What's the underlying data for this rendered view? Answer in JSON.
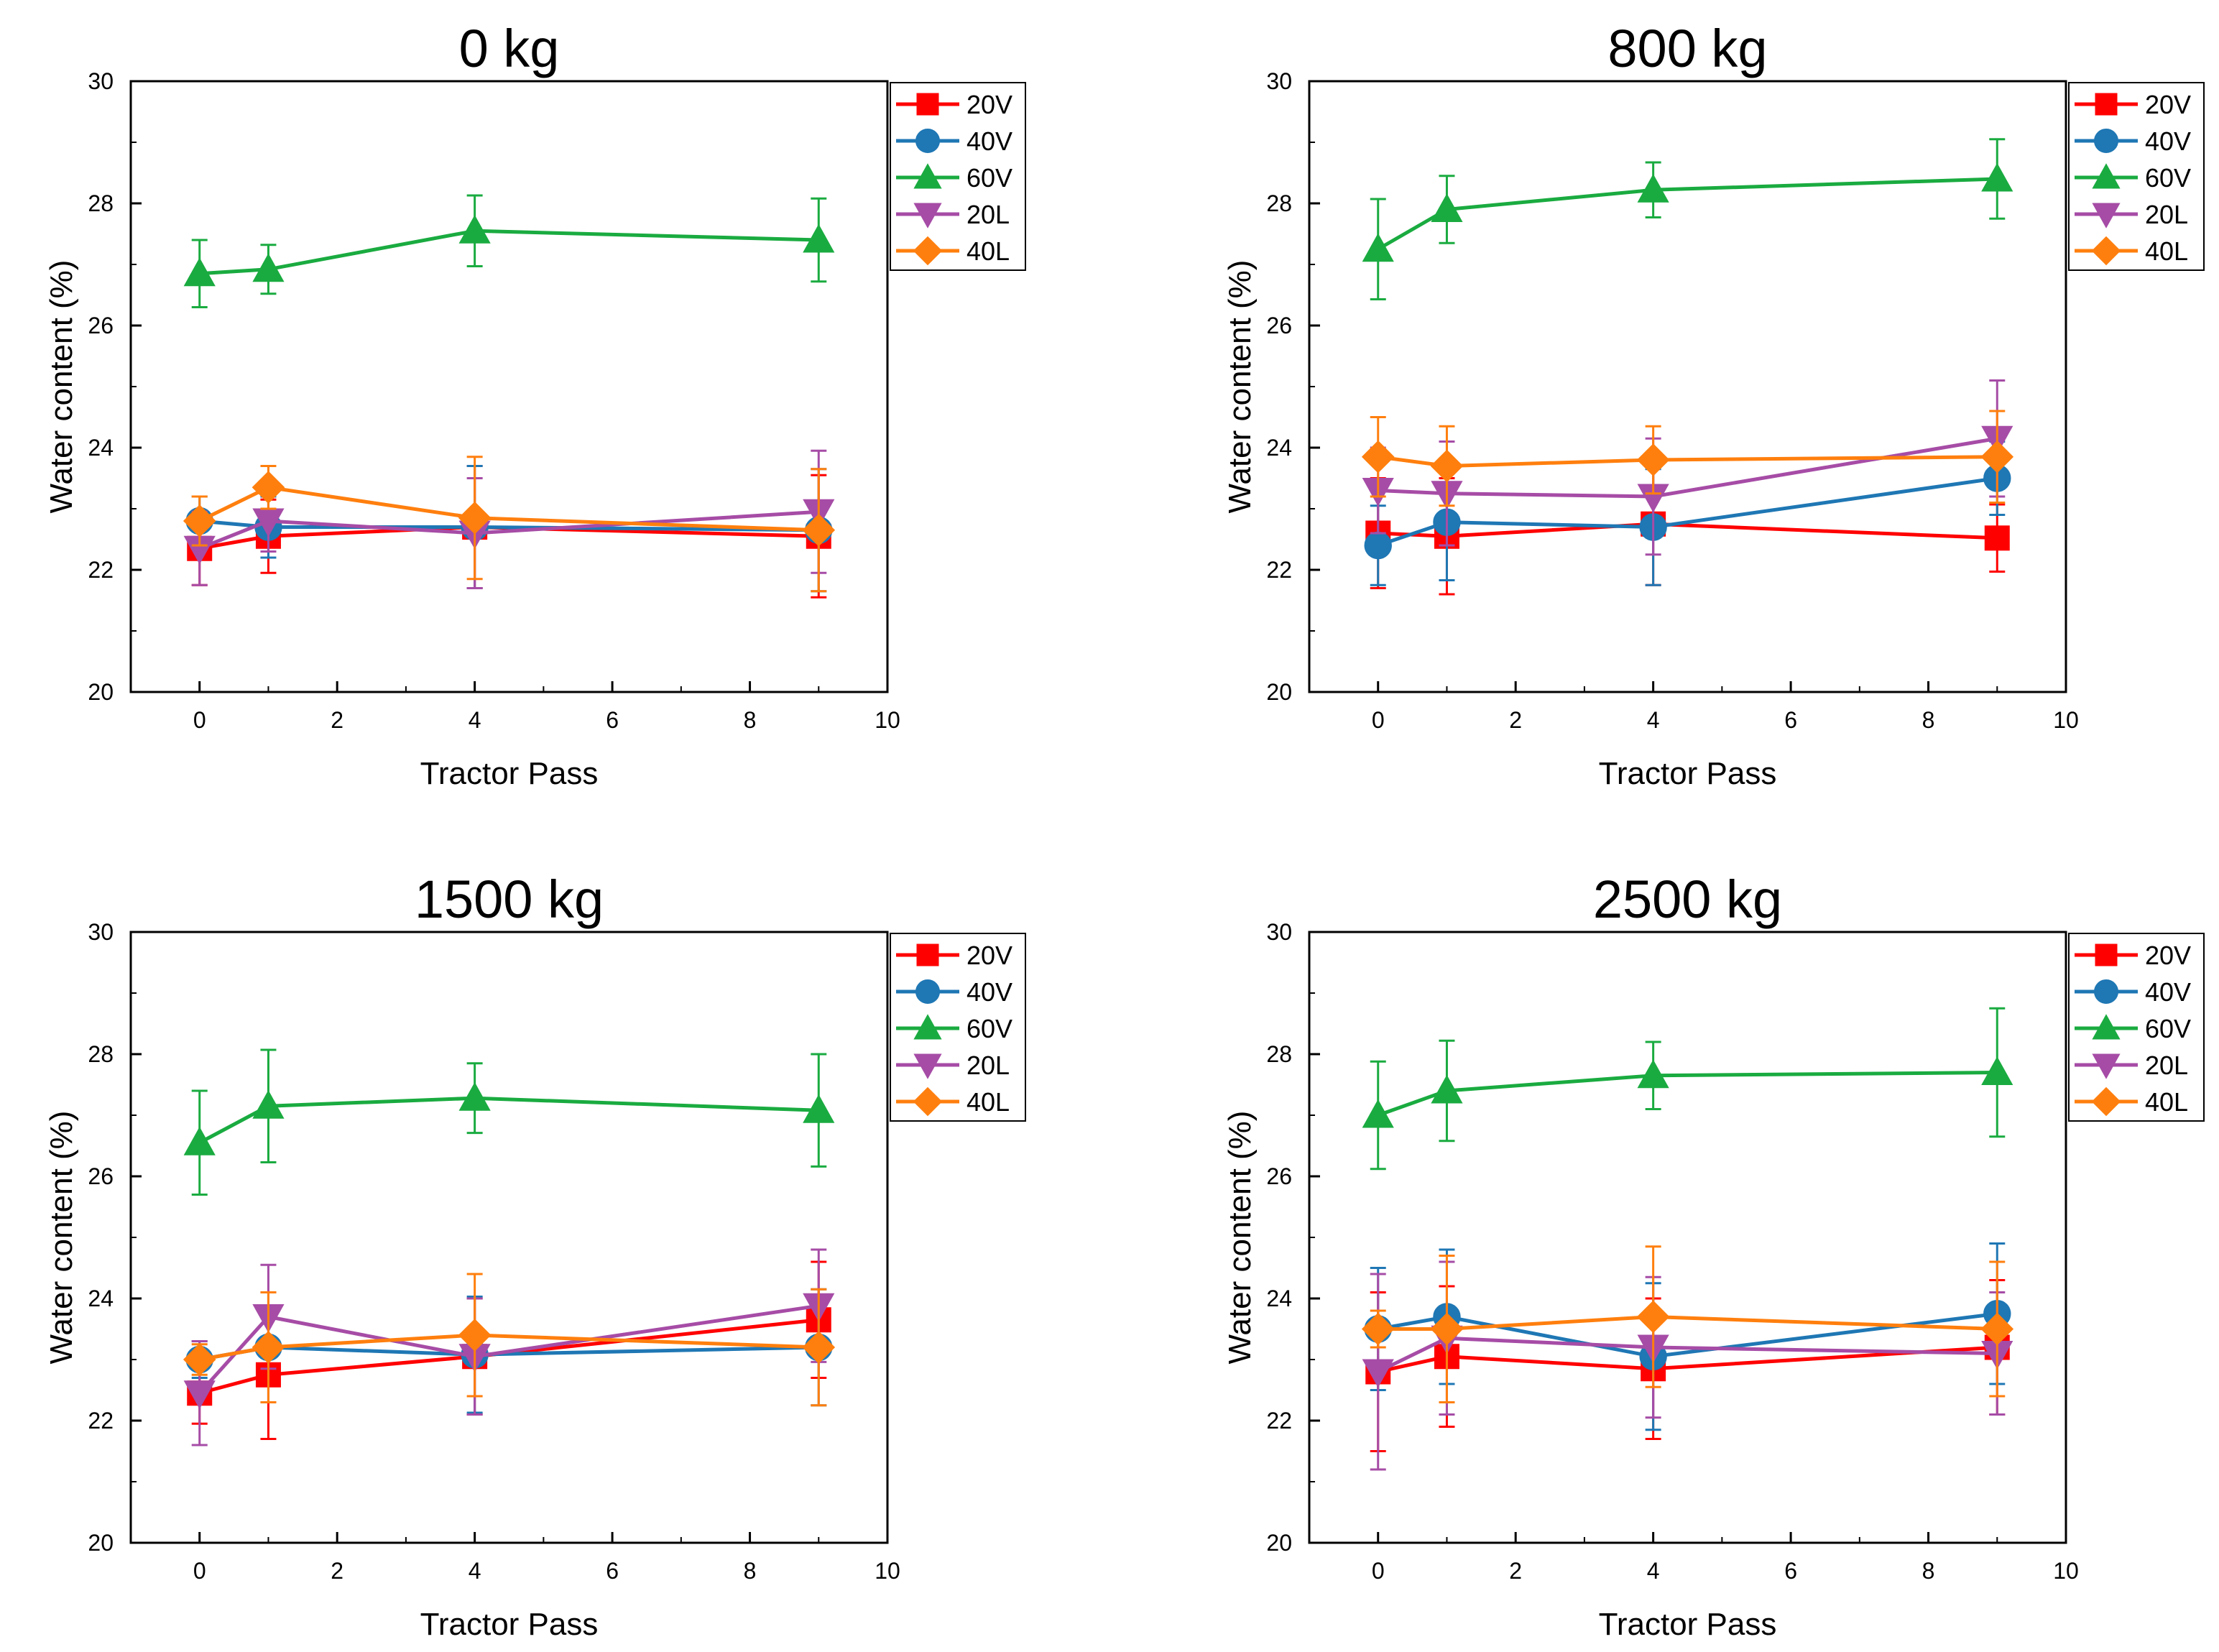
{
  "series_style": {
    "20V": {
      "color": "#ff0000",
      "marker": "square"
    },
    "40V": {
      "color": "#1f77b4",
      "marker": "circle"
    },
    "60V": {
      "color": "#1aab40",
      "marker": "triangle-up"
    },
    "20L": {
      "color": "#a64ca6",
      "marker": "triangle-down"
    },
    "40L": {
      "color": "#ff7f0e",
      "marker": "diamond"
    }
  },
  "chart_data": [
    {
      "type": "line",
      "title": "0 kg",
      "xlabel": "Tractor Pass",
      "ylabel": "Water content (%)",
      "xlim": [
        -1,
        10
      ],
      "ylim": [
        20,
        30
      ],
      "xticks": [
        "0",
        "2",
        "4",
        "6",
        "8",
        "10"
      ],
      "yticks": [
        "20",
        "22",
        "24",
        "26",
        "28",
        "30"
      ],
      "legend": "top-right, outside",
      "x": [
        0,
        1,
        4,
        9
      ],
      "series": [
        {
          "name": "20V",
          "values": [
            22.35,
            22.55,
            22.7,
            22.55
          ],
          "errors": [
            0.6,
            0.6,
            1.0,
            1.0
          ]
        },
        {
          "name": "40V",
          "values": [
            22.8,
            22.7,
            22.7,
            22.65
          ],
          "errors": [
            0.4,
            0.5,
            1.0,
            1.0
          ]
        },
        {
          "name": "60V",
          "values": [
            26.85,
            26.92,
            27.55,
            27.4
          ],
          "errors": [
            0.55,
            0.4,
            0.58,
            0.68
          ]
        },
        {
          "name": "20L",
          "values": [
            22.35,
            22.8,
            22.6,
            22.95
          ],
          "errors": [
            0.6,
            0.5,
            0.9,
            1.0
          ]
        },
        {
          "name": "40L",
          "values": [
            22.8,
            23.35,
            22.85,
            22.65
          ],
          "errors": [
            0.4,
            0.35,
            1.0,
            1.0
          ]
        }
      ]
    },
    {
      "type": "line",
      "title": "800 kg",
      "xlabel": "Tractor Pass",
      "ylabel": "Water content (%)",
      "xlim": [
        -1,
        10
      ],
      "ylim": [
        20,
        30
      ],
      "xticks": [
        "0",
        "2",
        "4",
        "6",
        "8",
        "10"
      ],
      "yticks": [
        "20",
        "22",
        "24",
        "26",
        "28",
        "30"
      ],
      "legend": "top-right, outside",
      "x": [
        0,
        1,
        4,
        9
      ],
      "series": [
        {
          "name": "20V",
          "values": [
            22.6,
            22.55,
            22.75,
            22.52
          ],
          "errors": [
            0.9,
            0.95,
            1.0,
            0.55
          ]
        },
        {
          "name": "40V",
          "values": [
            22.4,
            22.78,
            22.7,
            23.5
          ],
          "errors": [
            0.65,
            0.95,
            0.95,
            0.6
          ]
        },
        {
          "name": "60V",
          "values": [
            27.25,
            27.9,
            28.22,
            28.4
          ],
          "errors": [
            0.82,
            0.55,
            0.45,
            0.65
          ]
        },
        {
          "name": "20L",
          "values": [
            23.3,
            23.25,
            23.2,
            24.15
          ],
          "errors": [
            0.7,
            0.85,
            0.95,
            0.95
          ]
        },
        {
          "name": "40L",
          "values": [
            23.85,
            23.7,
            23.8,
            23.85
          ],
          "errors": [
            0.65,
            0.65,
            0.55,
            0.75
          ]
        }
      ]
    },
    {
      "type": "line",
      "title": "1500 kg",
      "xlabel": "Tractor Pass",
      "ylabel": "Water content (%)",
      "xlim": [
        -1,
        10
      ],
      "ylim": [
        20,
        30
      ],
      "xticks": [
        "0",
        "2",
        "4",
        "6",
        "8",
        "10"
      ],
      "yticks": [
        "20",
        "22",
        "24",
        "26",
        "28",
        "30"
      ],
      "legend": "top-right, outside",
      "x": [
        0,
        1,
        4,
        9
      ],
      "series": [
        {
          "name": "20V",
          "values": [
            22.45,
            22.75,
            23.05,
            23.65
          ],
          "errors": [
            0.5,
            1.05,
            0.95,
            0.95
          ]
        },
        {
          "name": "40V",
          "values": [
            23.0,
            23.2,
            23.08,
            23.2
          ],
          "errors": [
            0.3,
            0.9,
            0.95,
            0.95
          ]
        },
        {
          "name": "60V",
          "values": [
            26.55,
            27.15,
            27.28,
            27.08
          ],
          "errors": [
            0.85,
            0.92,
            0.57,
            0.92
          ]
        },
        {
          "name": "20L",
          "values": [
            22.45,
            23.7,
            23.05,
            23.88
          ],
          "errors": [
            0.85,
            0.85,
            0.95,
            0.92
          ]
        },
        {
          "name": "40L",
          "values": [
            23.0,
            23.2,
            23.4,
            23.2
          ],
          "errors": [
            0.25,
            0.9,
            1.0,
            0.95
          ]
        }
      ]
    },
    {
      "type": "line",
      "title": "2500 kg",
      "xlabel": "Tractor Pass",
      "ylabel": "Water content (%)",
      "xlim": [
        -1,
        10
      ],
      "ylim": [
        20,
        30
      ],
      "xticks": [
        "0",
        "2",
        "4",
        "6",
        "8",
        "10"
      ],
      "yticks": [
        "20",
        "22",
        "24",
        "26",
        "28",
        "30"
      ],
      "legend": "top-right, outside",
      "x": [
        0,
        1,
        4,
        9
      ],
      "series": [
        {
          "name": "20V",
          "values": [
            22.8,
            23.05,
            22.85,
            23.2
          ],
          "errors": [
            1.3,
            1.15,
            1.15,
            1.1
          ]
        },
        {
          "name": "40V",
          "values": [
            23.5,
            23.7,
            23.05,
            23.75
          ],
          "errors": [
            1.0,
            1.1,
            1.2,
            1.15
          ]
        },
        {
          "name": "60V",
          "values": [
            27.0,
            27.4,
            27.65,
            27.7
          ],
          "errors": [
            0.88,
            0.82,
            0.55,
            1.05
          ]
        },
        {
          "name": "20L",
          "values": [
            22.8,
            23.35,
            23.2,
            23.1
          ],
          "errors": [
            1.6,
            1.25,
            1.15,
            1.0
          ]
        },
        {
          "name": "40L",
          "values": [
            23.5,
            23.5,
            23.7,
            23.5
          ],
          "errors": [
            0.3,
            1.2,
            1.15,
            1.1
          ]
        }
      ]
    }
  ]
}
